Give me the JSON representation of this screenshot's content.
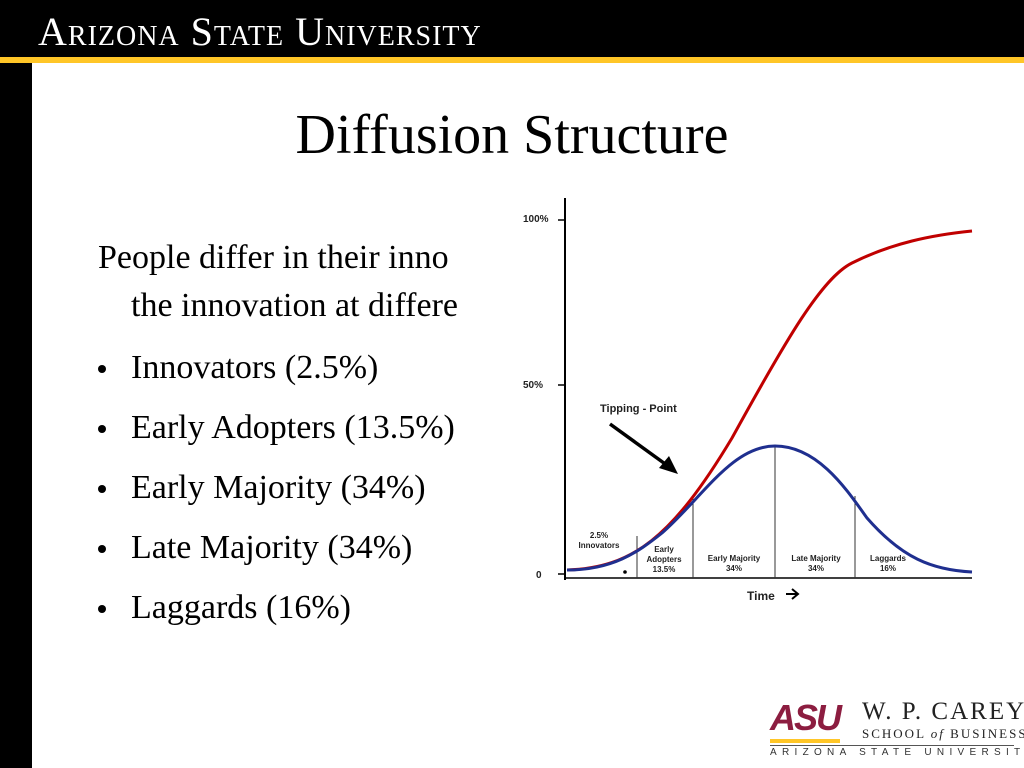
{
  "header": {
    "title": "Arizona State University"
  },
  "slide": {
    "title": "Diffusion Structure",
    "intro_line1": "People differ in their inno",
    "intro_line2": "the innovation at differe",
    "bullets": [
      "Innovators (2.5%)",
      "Early Adopters (13.5%)",
      "Early Majority (34%)",
      "Late Majority (34%)",
      "Laggards (16%)"
    ]
  },
  "chart_data": {
    "type": "line",
    "xlabel": "Time",
    "y_ticks": [
      "0",
      "50%",
      "100%"
    ],
    "annotation": "Tipping - Point",
    "segments": [
      {
        "label": "2.5%",
        "sublabel": "Innovators"
      },
      {
        "label": "Early",
        "sublabel": "Adopters",
        "value": "13.5%"
      },
      {
        "label": "Early Majority",
        "value": "34%"
      },
      {
        "label": "Late Majority",
        "value": "34%"
      },
      {
        "label": "Laggards",
        "value": "16%"
      }
    ],
    "series": [
      {
        "color": "#C00000",
        "shape": "s-curve (cumulative adoption)"
      },
      {
        "color": "#1F2F8F",
        "shape": "bell curve (adopters per period)"
      }
    ]
  },
  "logo": {
    "mark": "ASU",
    "line1": "W. P. CAREY",
    "line2a": "SCHOOL",
    "line2b": "of",
    "line2c": "BUSINESS",
    "line3": "ARIZONA STATE UNIVERSITY"
  }
}
